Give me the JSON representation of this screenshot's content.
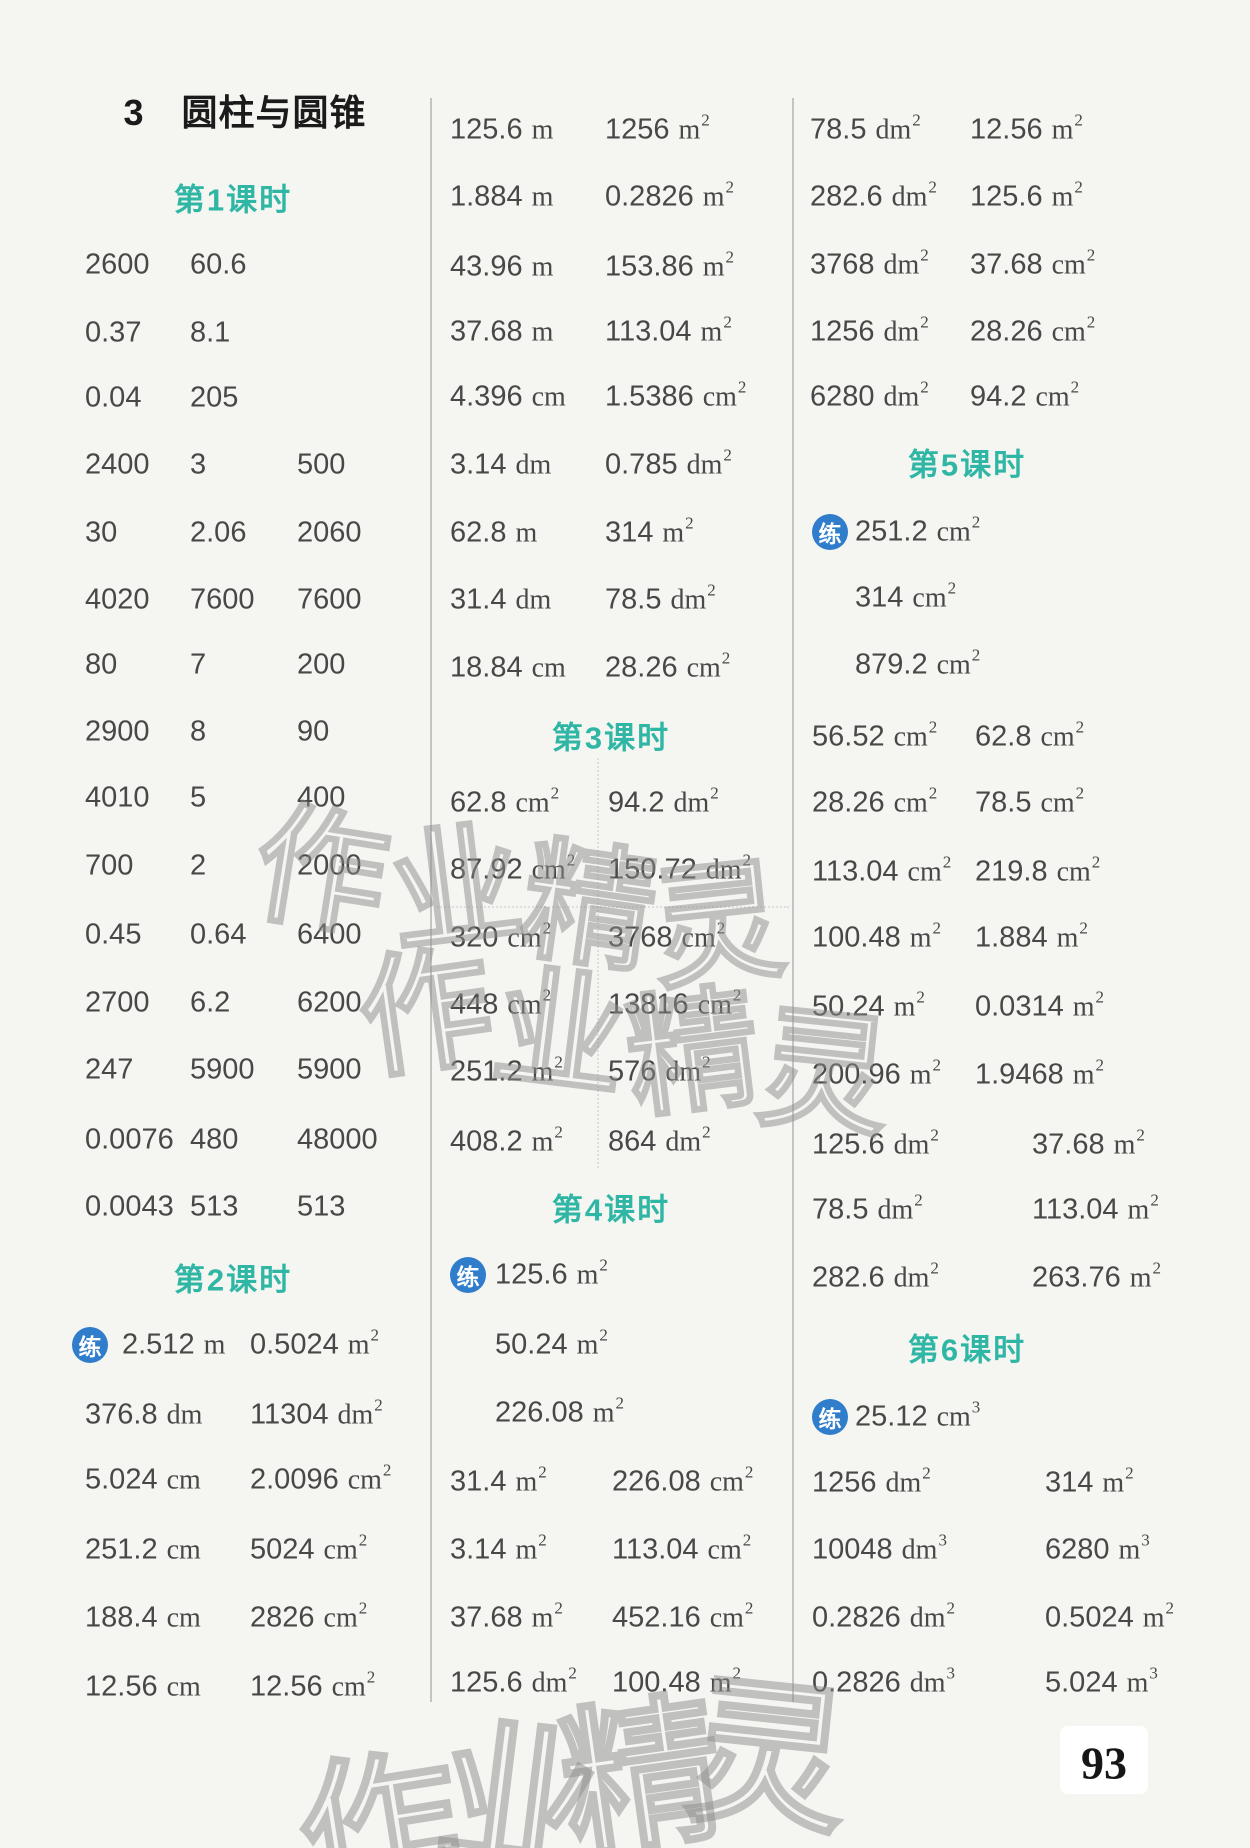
{
  "title": "3　圆柱与圆锥",
  "page_number": "93",
  "badge_label": "练",
  "watermark_chars": [
    "作",
    "业",
    "精",
    "灵"
  ],
  "colors": {
    "header_teal": "#30b6a4",
    "badge_blue": "#2f7dcb",
    "text_gray": "#484848",
    "watermark_gray": "#8d8d8d"
  },
  "sections": [
    {
      "header": "第1课时",
      "rows": [
        {
          "cells": [
            [
              "2600"
            ],
            [
              "60.6"
            ]
          ]
        },
        {
          "cells": [
            [
              "0.37"
            ],
            [
              "8.1"
            ]
          ]
        },
        {
          "cells": [
            [
              "0.04"
            ],
            [
              "205"
            ]
          ]
        },
        {
          "cells": [
            [
              "2400"
            ],
            [
              "3"
            ],
            [
              "500"
            ]
          ]
        },
        {
          "cells": [
            [
              "30"
            ],
            [
              "2.06"
            ],
            [
              "2060"
            ]
          ]
        },
        {
          "cells": [
            [
              "4020"
            ],
            [
              "7600"
            ],
            [
              "7600"
            ]
          ]
        },
        {
          "cells": [
            [
              "80"
            ],
            [
              "7"
            ],
            [
              "200"
            ]
          ]
        },
        {
          "cells": [
            [
              "2900"
            ],
            [
              "8"
            ],
            [
              "90"
            ]
          ]
        },
        {
          "cells": [
            [
              "4010"
            ],
            [
              "5"
            ],
            [
              "400"
            ]
          ]
        },
        {
          "cells": [
            [
              "700"
            ],
            [
              "2"
            ],
            [
              "2000"
            ]
          ]
        },
        {
          "cells": [
            [
              "0.45"
            ],
            [
              "0.64"
            ],
            [
              "6400"
            ]
          ]
        },
        {
          "cells": [
            [
              "2700"
            ],
            [
              "6.2"
            ],
            [
              "6200"
            ]
          ]
        },
        {
          "cells": [
            [
              "247"
            ],
            [
              "5900"
            ],
            [
              "5900"
            ]
          ]
        },
        {
          "cells": [
            [
              "0.0076"
            ],
            [
              "480"
            ],
            [
              "48000"
            ]
          ]
        },
        {
          "cells": [
            [
              "0.0043"
            ],
            [
              "513"
            ],
            [
              "513"
            ]
          ]
        }
      ]
    },
    {
      "header": "第2课时",
      "rows": [
        {
          "badge": true,
          "cells": [
            [
              "2.512",
              "m"
            ],
            [
              "0.5024",
              "m",
              "2"
            ]
          ]
        },
        {
          "cells": [
            [
              "376.8",
              "dm"
            ],
            [
              "11304",
              "dm",
              "2"
            ]
          ]
        },
        {
          "cells": [
            [
              "5.024",
              "cm"
            ],
            [
              "2.0096",
              "cm",
              "2"
            ]
          ]
        },
        {
          "cells": [
            [
              "251.2",
              "cm"
            ],
            [
              "5024",
              "cm",
              "2"
            ]
          ]
        },
        {
          "cells": [
            [
              "188.4",
              "cm"
            ],
            [
              "2826",
              "cm",
              "2"
            ]
          ]
        },
        {
          "cells": [
            [
              "12.56",
              "cm"
            ],
            [
              "12.56",
              "cm",
              "2"
            ]
          ]
        }
      ]
    },
    {
      "header": null,
      "rows": [
        {
          "cells": [
            [
              "125.6",
              "m"
            ],
            [
              "1256",
              "m",
              "2"
            ]
          ]
        },
        {
          "cells": [
            [
              "1.884",
              "m"
            ],
            [
              "0.2826",
              "m",
              "2"
            ]
          ]
        },
        {
          "cells": [
            [
              "43.96",
              "m"
            ],
            [
              "153.86",
              "m",
              "2"
            ]
          ]
        },
        {
          "cells": [
            [
              "37.68",
              "m"
            ],
            [
              "113.04",
              "m",
              "2"
            ]
          ]
        },
        {
          "cells": [
            [
              "4.396",
              "cm"
            ],
            [
              "1.5386",
              "cm",
              "2"
            ]
          ]
        },
        {
          "cells": [
            [
              "3.14",
              "dm"
            ],
            [
              "0.785",
              "dm",
              "2"
            ]
          ]
        },
        {
          "cells": [
            [
              "62.8",
              "m"
            ],
            [
              "314",
              "m",
              "2"
            ]
          ]
        },
        {
          "cells": [
            [
              "31.4",
              "dm"
            ],
            [
              "78.5",
              "dm",
              "2"
            ]
          ]
        },
        {
          "cells": [
            [
              "18.84",
              "cm"
            ],
            [
              "28.26",
              "cm",
              "2"
            ]
          ]
        }
      ]
    },
    {
      "header": "第3课时",
      "rows": [
        {
          "cells": [
            [
              "62.8",
              "cm",
              "2"
            ],
            [
              "94.2",
              "dm",
              "2"
            ]
          ]
        },
        {
          "cells": [
            [
              "87.92",
              "cm",
              "2"
            ],
            [
              "150.72",
              "dm",
              "2"
            ]
          ]
        },
        {
          "cells": [
            [
              "320",
              "cm",
              "2"
            ],
            [
              "3768",
              "cm",
              "2"
            ]
          ]
        },
        {
          "cells": [
            [
              "448",
              "cm",
              "2"
            ],
            [
              "13816",
              "cm",
              "2"
            ]
          ]
        },
        {
          "cells": [
            [
              "251.2",
              "m",
              "2"
            ],
            [
              "576",
              "dm",
              "2"
            ]
          ]
        },
        {
          "cells": [
            [
              "408.2",
              "m",
              "2"
            ],
            [
              "864",
              "dm",
              "2"
            ]
          ]
        }
      ]
    },
    {
      "header": "第4课时",
      "rows": [
        {
          "badge": true,
          "cells": [
            [
              "125.6",
              "m",
              "2"
            ]
          ]
        },
        {
          "indent": true,
          "cells": [
            [
              "50.24",
              "m",
              "2"
            ]
          ]
        },
        {
          "indent": true,
          "cells": [
            [
              "226.08",
              "m",
              "2"
            ]
          ]
        },
        {
          "cells": [
            [
              "31.4",
              "m",
              "2"
            ],
            [
              "226.08",
              "cm",
              "2"
            ]
          ]
        },
        {
          "cells": [
            [
              "3.14",
              "m",
              "2"
            ],
            [
              "113.04",
              "cm",
              "2"
            ]
          ]
        },
        {
          "cells": [
            [
              "37.68",
              "m",
              "2"
            ],
            [
              "452.16",
              "cm",
              "2"
            ]
          ]
        },
        {
          "cells": [
            [
              "125.6",
              "dm",
              "2"
            ],
            [
              "100.48",
              "m",
              "2"
            ]
          ]
        }
      ]
    },
    {
      "header": null,
      "rows": [
        {
          "cells": [
            [
              "78.5",
              "dm",
              "2"
            ],
            [
              "12.56",
              "m",
              "2"
            ]
          ]
        },
        {
          "cells": [
            [
              "282.6",
              "dm",
              "2"
            ],
            [
              "125.6",
              "m",
              "2"
            ]
          ]
        },
        {
          "cells": [
            [
              "3768",
              "dm",
              "2"
            ],
            [
              "37.68",
              "cm",
              "2"
            ]
          ]
        },
        {
          "cells": [
            [
              "1256",
              "dm",
              "2"
            ],
            [
              "28.26",
              "cm",
              "2"
            ]
          ]
        },
        {
          "cells": [
            [
              "6280",
              "dm",
              "2"
            ],
            [
              "94.2",
              "cm",
              "2"
            ]
          ]
        }
      ]
    },
    {
      "header": "第5课时",
      "rows": [
        {
          "badge": true,
          "cells": [
            [
              "251.2",
              "cm",
              "2"
            ]
          ]
        },
        {
          "indent": true,
          "cells": [
            [
              "314",
              "cm",
              "2"
            ]
          ]
        },
        {
          "indent": true,
          "cells": [
            [
              "879.2",
              "cm",
              "2"
            ]
          ]
        },
        {
          "cells": [
            [
              "56.52",
              "cm",
              "2"
            ],
            [
              "62.8",
              "cm",
              "2"
            ]
          ]
        },
        {
          "cells": [
            [
              "28.26",
              "cm",
              "2"
            ],
            [
              "78.5",
              "cm",
              "2"
            ]
          ]
        },
        {
          "cells": [
            [
              "113.04",
              "cm",
              "2"
            ],
            [
              "219.8",
              "cm",
              "2"
            ]
          ]
        },
        {
          "cells": [
            [
              "100.48",
              "m",
              "2"
            ],
            [
              "1.884",
              "m",
              "2"
            ]
          ]
        },
        {
          "cells": [
            [
              "50.24",
              "m",
              "2"
            ],
            [
              "0.0314",
              "m",
              "2"
            ]
          ]
        },
        {
          "cells": [
            [
              "200.96",
              "m",
              "2"
            ],
            [
              "1.9468",
              "m",
              "2"
            ]
          ]
        },
        {
          "cells": [
            [
              "125.6",
              "dm",
              "2"
            ],
            [
              "37.68",
              "m",
              "2"
            ]
          ]
        },
        {
          "cells": [
            [
              "78.5",
              "dm",
              "2"
            ],
            [
              "113.04",
              "m",
              "2"
            ]
          ]
        },
        {
          "cells": [
            [
              "282.6",
              "dm",
              "2"
            ],
            [
              "263.76",
              "m",
              "2"
            ]
          ]
        }
      ]
    },
    {
      "header": "第6课时",
      "rows": [
        {
          "badge": true,
          "cells": [
            [
              "25.12",
              "cm",
              "3"
            ]
          ]
        },
        {
          "cells": [
            [
              "1256",
              "dm",
              "2"
            ],
            [
              "314",
              "m",
              "2"
            ]
          ]
        },
        {
          "cells": [
            [
              "10048",
              "dm",
              "3"
            ],
            [
              "6280",
              "m",
              "3"
            ]
          ]
        },
        {
          "cells": [
            [
              "0.2826",
              "dm",
              "2"
            ],
            [
              "0.5024",
              "m",
              "2"
            ]
          ]
        },
        {
          "cells": [
            [
              "0.2826",
              "dm",
              "3"
            ],
            [
              "5.024",
              "m",
              "3"
            ]
          ]
        }
      ]
    }
  ]
}
